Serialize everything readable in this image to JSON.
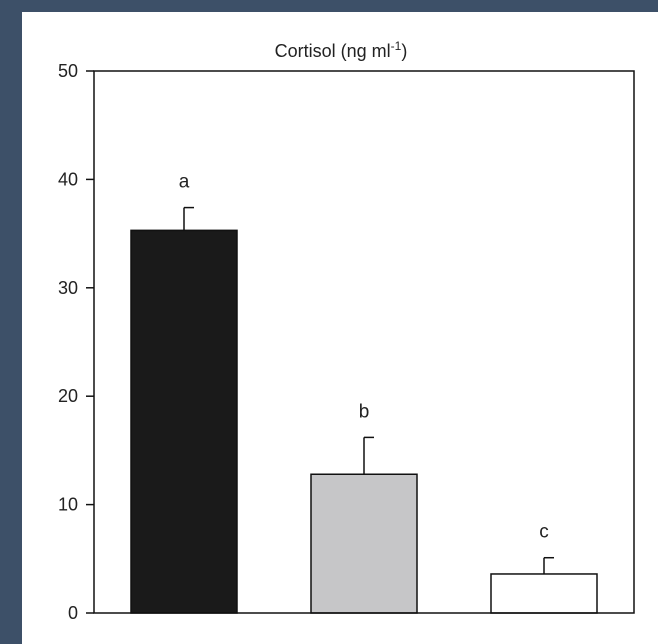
{
  "chart_data": {
    "type": "bar",
    "title": "Cortisol (ng ml",
    "title_superscript": "-1",
    "title_suffix": ")",
    "xlabel": "",
    "ylabel": "",
    "ylim": [
      0,
      50
    ],
    "yticks": [
      0,
      10,
      20,
      30,
      40,
      50
    ],
    "categories": [
      "",
      "",
      ""
    ],
    "values": [
      35.3,
      12.8,
      3.6
    ],
    "errors": [
      2.1,
      3.4,
      1.5
    ],
    "significance_labels": [
      "a",
      "b",
      "c"
    ],
    "bar_colors": [
      "#1a1a1a",
      "#c6c6c8",
      "#ffffff"
    ],
    "grid": false,
    "legend": "none"
  }
}
